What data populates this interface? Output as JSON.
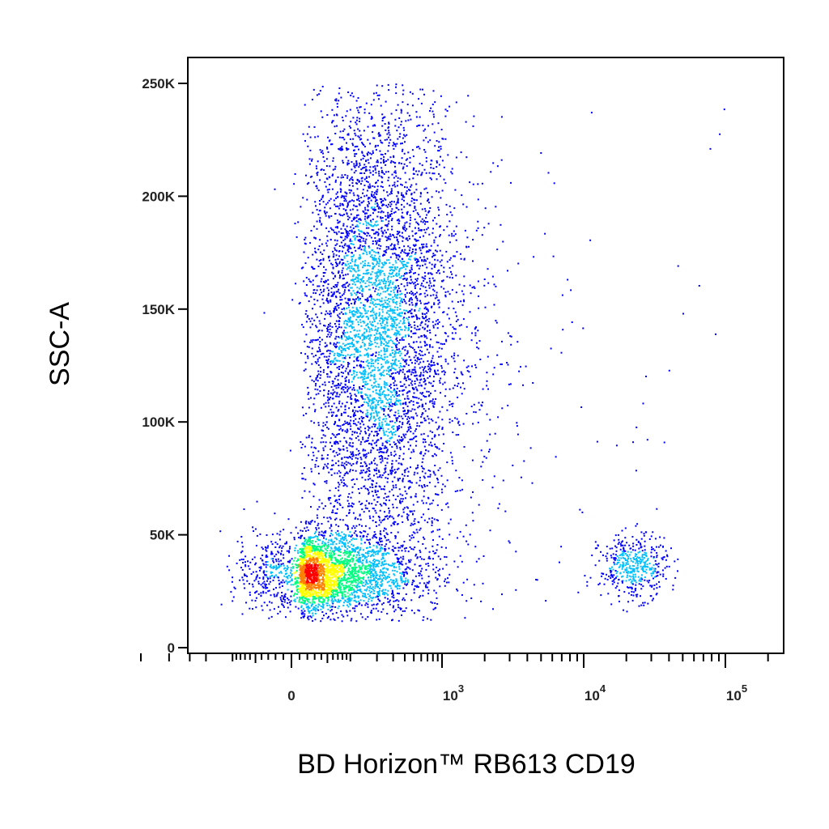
{
  "chart_data": {
    "type": "scatter",
    "title": "",
    "xlabel": "BD Horizon™ RB613 CD19",
    "ylabel": "SSC-A",
    "x_scale": "biexponential",
    "x_ticks": [
      {
        "value": 0,
        "label": "0"
      },
      {
        "value": 1000,
        "label": "10",
        "sup": "3"
      },
      {
        "value": 10000,
        "label": "10",
        "sup": "4"
      },
      {
        "value": 100000,
        "label": "10",
        "sup": "5"
      }
    ],
    "ylim": [
      0,
      262144
    ],
    "y_ticks": [
      {
        "value": 0,
        "label": "0"
      },
      {
        "value": 50000,
        "label": "50K"
      },
      {
        "value": 100000,
        "label": "100K"
      },
      {
        "value": 150000,
        "label": "150K"
      },
      {
        "value": 200000,
        "label": "200K"
      },
      {
        "value": 250000,
        "label": "250K"
      }
    ],
    "grid": false,
    "density_colormap": [
      "#0000ff",
      "#00bfff",
      "#00ff80",
      "#ffff00",
      "#ff8000",
      "#ff0000"
    ],
    "populations": [
      {
        "name": "",
        "x_center_log10": 2.3,
        "y_center": 140000,
        "x_spread": 0.45,
        "y_spread": 55000,
        "weight": 0.62
      },
      {
        "name": "",
        "x_center_log10": 1.6,
        "y_center": 33000,
        "x_spread": 0.55,
        "y_spread": 9000,
        "weight": 0.33
      },
      {
        "name": "",
        "x_center_log10": 4.35,
        "y_center": 36000,
        "x_spread": 0.12,
        "y_spread": 7000,
        "weight": 0.05
      }
    ]
  }
}
